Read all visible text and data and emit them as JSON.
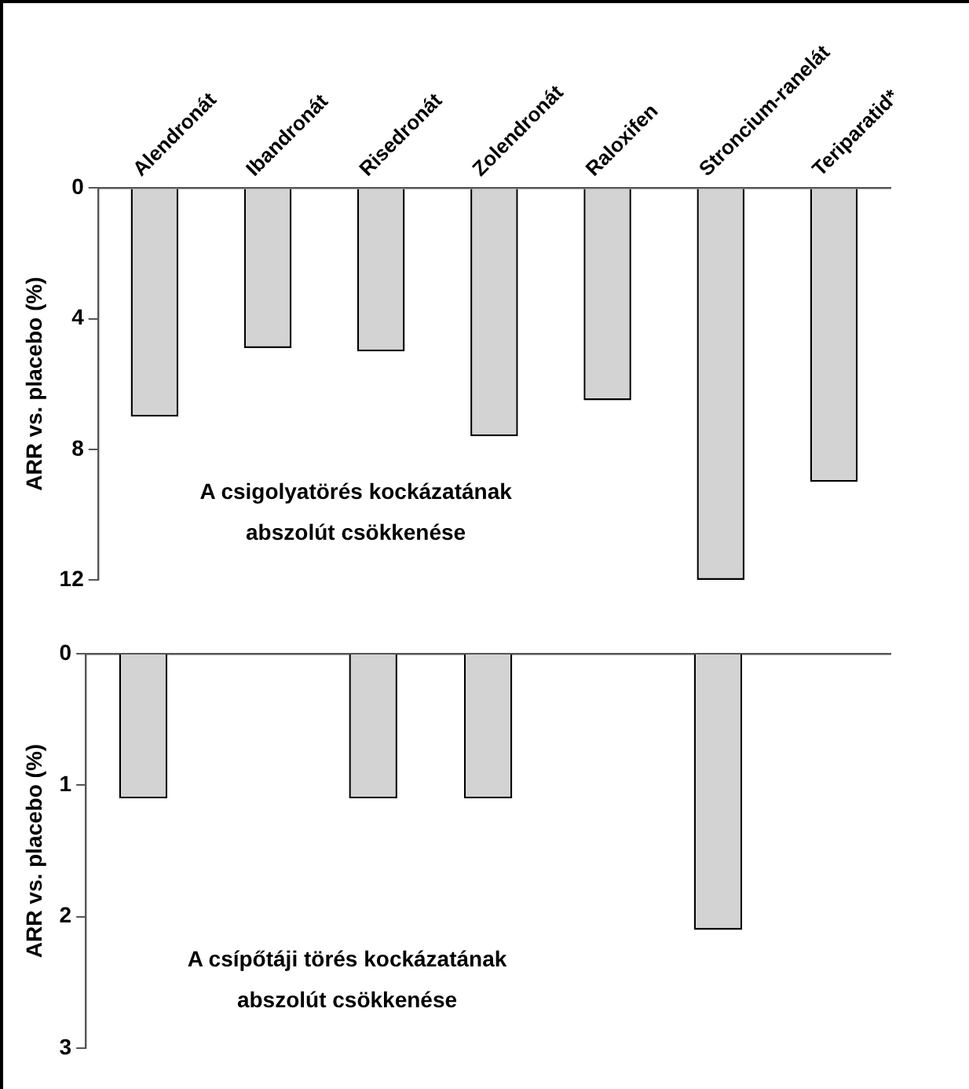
{
  "chart_data": [
    {
      "type": "bar",
      "categories": [
        "Alendronát",
        "Ibandronát",
        "Risedronát",
        "Zolendronát",
        "Raloxifen",
        "Stroncium-ranelát",
        "Teriparatid*"
      ],
      "series": [
        {
          "color": "#d3d3d3",
          "values": [
            7.0,
            4.9,
            5.0,
            7.6,
            6.5,
            12,
            9.0
          ]
        }
      ],
      "ylabel": "ARR vs. placebo (%)",
      "ylim": [
        12,
        0
      ],
      "yticks": [
        0,
        4,
        8,
        12
      ],
      "grid": false,
      "legend": false,
      "annotations": [
        "A csigolyatörés kockázatának\nabszolút csökkenése"
      ]
    },
    {
      "type": "bar",
      "categories": [
        null,
        null,
        null,
        null,
        null,
        null,
        null
      ],
      "series": [
        {
          "color": "#d3d3d3",
          "values": [
            1.1,
            null,
            1.1,
            1.1,
            null,
            2.1,
            null
          ]
        }
      ],
      "ylabel": "ARR vs. placebo (%)",
      "ylim": [
        3,
        0
      ],
      "yticks": [
        0,
        1,
        2,
        3
      ],
      "grid": false,
      "legend": false,
      "tick_labels": "y",
      "annotations": [
        "A csípőtáji törés kockázatának\nabszolút csökkenése"
      ]
    }
  ]
}
